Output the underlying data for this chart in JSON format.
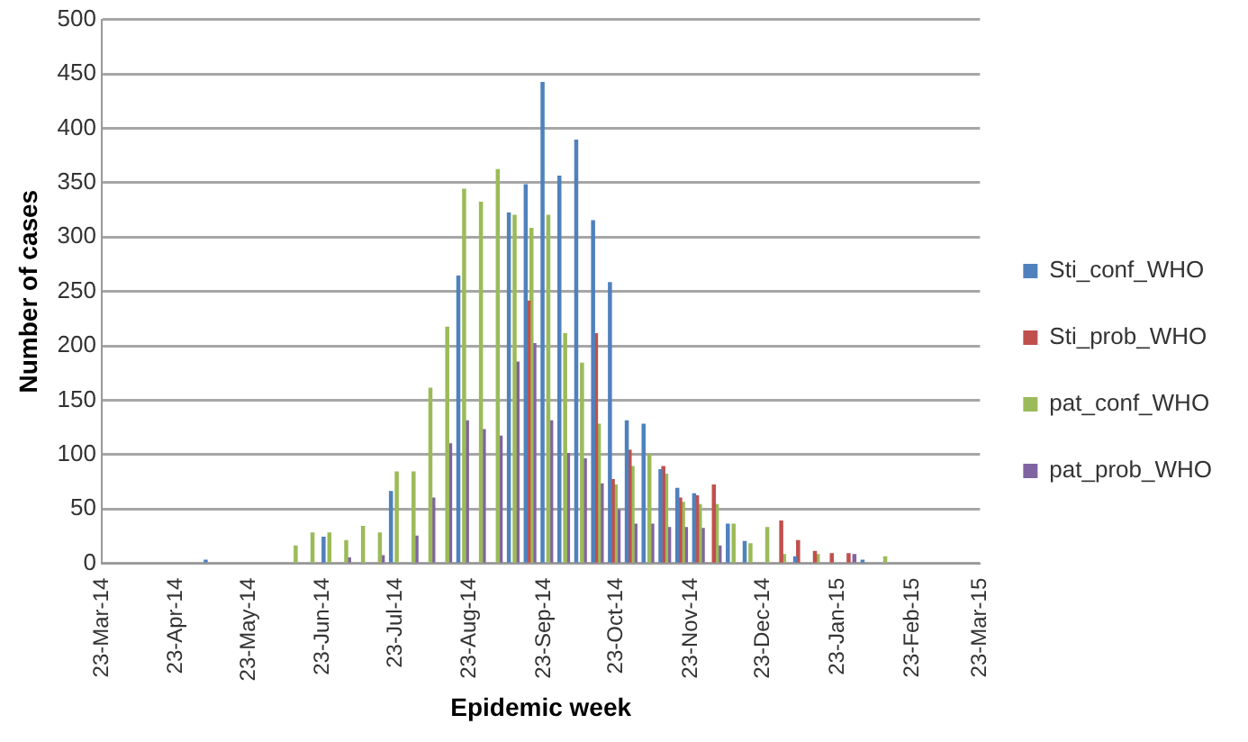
{
  "chart_data": {
    "type": "bar",
    "xlabel": "Epidemic week",
    "ylabel": "Number of cases",
    "x": [
      "2014-05-07",
      "2014-05-14",
      "2014-05-21",
      "2014-05-28",
      "2014-06-04",
      "2014-06-11",
      "2014-06-18",
      "2014-06-25",
      "2014-07-02",
      "2014-07-09",
      "2014-07-16",
      "2014-07-23",
      "2014-07-30",
      "2014-08-06",
      "2014-08-13",
      "2014-08-20",
      "2014-08-27",
      "2014-09-03",
      "2014-09-10",
      "2014-09-17",
      "2014-09-24",
      "2014-10-01",
      "2014-10-08",
      "2014-10-15",
      "2014-10-22",
      "2014-10-29",
      "2014-11-05",
      "2014-11-12",
      "2014-11-19",
      "2014-11-26",
      "2014-12-03",
      "2014-12-10",
      "2014-12-17",
      "2014-12-24",
      "2014-12-31",
      "2015-01-07",
      "2015-01-14",
      "2015-01-21",
      "2015-01-28",
      "2015-02-04",
      "2015-02-11"
    ],
    "series": [
      {
        "name": "Sti_conf_WHO",
        "color": "#4f81bd",
        "values": [
          3,
          null,
          null,
          null,
          null,
          null,
          null,
          24,
          null,
          null,
          null,
          66,
          null,
          null,
          null,
          264,
          null,
          null,
          322,
          348,
          442,
          356,
          389,
          315,
          258,
          131,
          128,
          86,
          69,
          64,
          null,
          36,
          20,
          null,
          null,
          6,
          null,
          null,
          null,
          3,
          null
        ]
      },
      {
        "name": "Sti_prob_WHO",
        "color": "#c0504d",
        "values": [
          null,
          null,
          null,
          null,
          null,
          null,
          null,
          null,
          null,
          null,
          null,
          null,
          null,
          null,
          null,
          null,
          null,
          null,
          null,
          241,
          null,
          null,
          null,
          211,
          77,
          104,
          null,
          89,
          60,
          62,
          72,
          null,
          null,
          null,
          39,
          21,
          11,
          9,
          9,
          null,
          null
        ]
      },
      {
        "name": "pat_conf_WHO",
        "color": "#9bbb59",
        "values": [
          null,
          null,
          null,
          null,
          null,
          16,
          28,
          28,
          21,
          34,
          28,
          84,
          84,
          161,
          217,
          344,
          332,
          362,
          320,
          308,
          320,
          211,
          184,
          128,
          72,
          89,
          100,
          82,
          56,
          54,
          54,
          36,
          18,
          33,
          8,
          null,
          8,
          null,
          null,
          null,
          6
        ]
      },
      {
        "name": "pat_prob_WHO",
        "color": "#8064a2",
        "values": [
          null,
          null,
          null,
          null,
          null,
          null,
          null,
          null,
          5,
          null,
          7,
          null,
          25,
          60,
          110,
          131,
          123,
          117,
          185,
          202,
          131,
          101,
          96,
          73,
          49,
          36,
          36,
          33,
          33,
          32,
          16,
          null,
          null,
          null,
          null,
          null,
          null,
          null,
          8,
          null,
          null
        ]
      }
    ],
    "xlim": [
      "2014-03-23",
      "2015-03-23"
    ],
    "xticks": [
      {
        "value": "2014-03-23",
        "label": "23-Mar-14"
      },
      {
        "value": "2014-04-23",
        "label": "23-Apr-14"
      },
      {
        "value": "2014-05-23",
        "label": "23-May-14"
      },
      {
        "value": "2014-06-23",
        "label": "23-Jun-14"
      },
      {
        "value": "2014-07-23",
        "label": "23-Jul-14"
      },
      {
        "value": "2014-08-23",
        "label": "23-Aug-14"
      },
      {
        "value": "2014-09-23",
        "label": "23-Sep-14"
      },
      {
        "value": "2014-10-23",
        "label": "23-Oct-14"
      },
      {
        "value": "2014-11-23",
        "label": "23-Nov-14"
      },
      {
        "value": "2014-12-23",
        "label": "23-Dec-14"
      },
      {
        "value": "2015-01-23",
        "label": "23-Jan-15"
      },
      {
        "value": "2015-02-23",
        "label": "23-Feb-15"
      },
      {
        "value": "2015-03-23",
        "label": "23-Mar-15"
      }
    ],
    "ylim": [
      0,
      500
    ],
    "yticks": [
      0,
      50,
      100,
      150,
      200,
      250,
      300,
      350,
      400,
      450,
      500
    ],
    "grid": "y",
    "legend": "right"
  }
}
